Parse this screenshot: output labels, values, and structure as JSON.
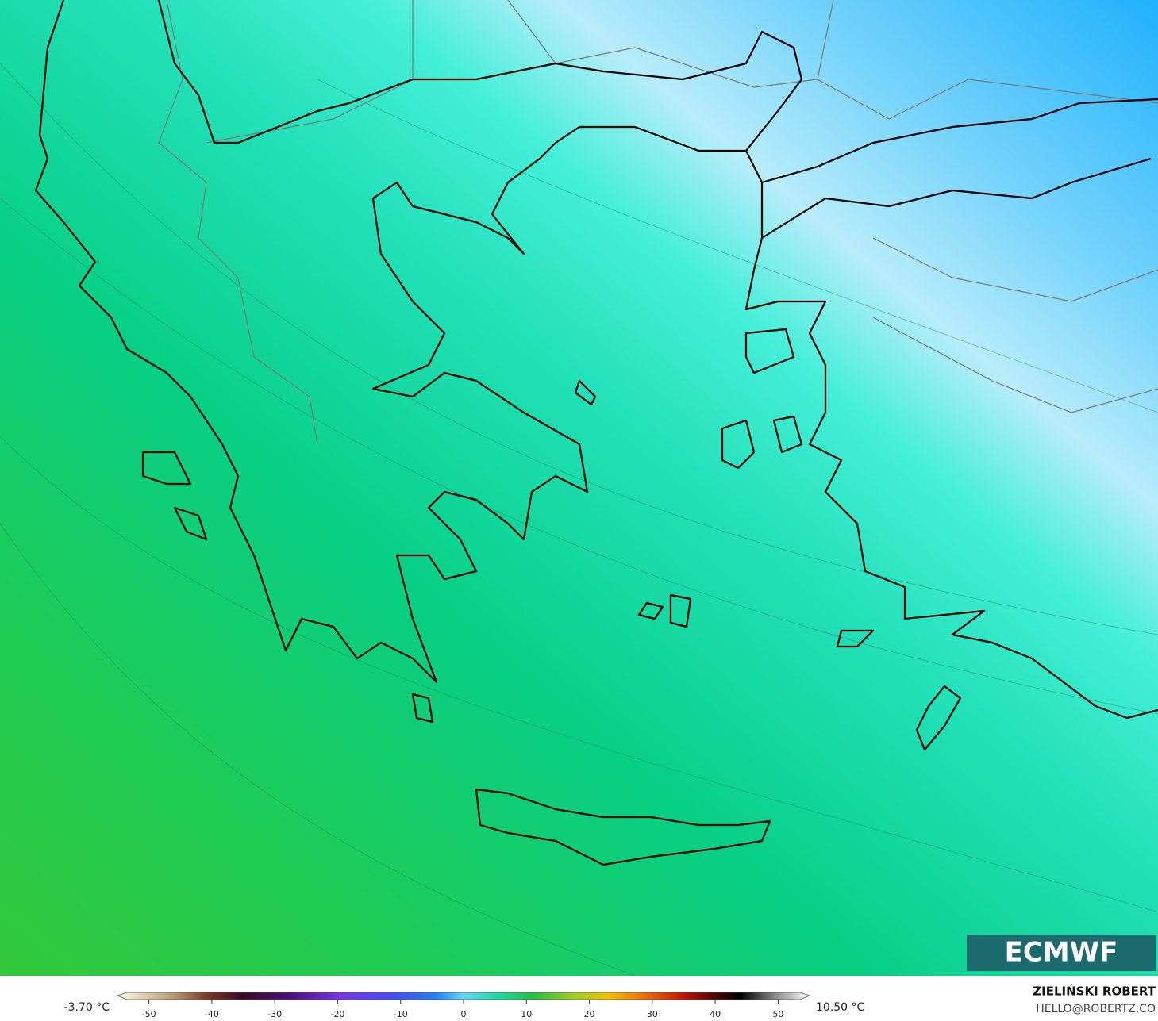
{
  "map": {
    "logo": "ECMWF"
  },
  "colorbar": {
    "min_label": "-3.70 °C",
    "max_label": "10.50 °C",
    "lim": [
      -55,
      55
    ],
    "ticks": [
      -50,
      -40,
      -30,
      -20,
      -10,
      0,
      10,
      20,
      30,
      40,
      50
    ]
  },
  "credit": {
    "author": "ZIELIŃSKI ROBERT",
    "contact": "HELLO@ROBERTZ.CO"
  }
}
